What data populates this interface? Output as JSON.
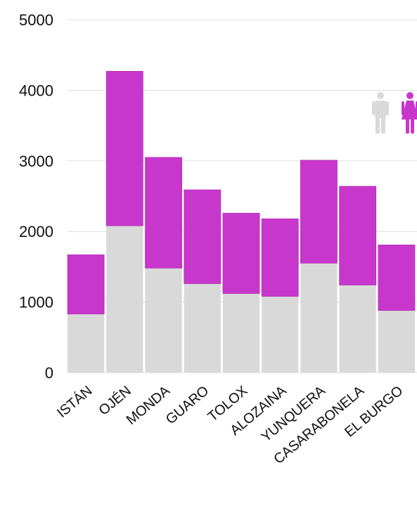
{
  "chart_data": {
    "type": "bar",
    "stacked": true,
    "title": "",
    "xlabel": "",
    "ylabel": "",
    "ylim": [
      0,
      5000
    ],
    "yticks": [
      0,
      1000,
      2000,
      3000,
      4000,
      5000
    ],
    "grid": true,
    "categories": [
      "ISTÁN",
      "OJÉN",
      "MONDA",
      "GUARO",
      "TOLOX",
      "ALOZAINA",
      "YUNQUERA",
      "CASARABONELA",
      "EL BURGO"
    ],
    "series": [
      {
        "values": [
          830,
          2080,
          1480,
          1260,
          1120,
          1080,
          1550,
          1240,
          880
        ],
        "color": "#d9d9d9"
      },
      {
        "values": [
          840,
          2190,
          1570,
          1330,
          1140,
          1100,
          1460,
          1400,
          930
        ],
        "color": "#c837cc"
      }
    ],
    "legend": {
      "placement": "top-right",
      "items": [
        {
          "icon": "man-icon",
          "color": "#d9d9d9"
        },
        {
          "icon": "woman-icon",
          "color": "#c837cc"
        }
      ]
    }
  }
}
